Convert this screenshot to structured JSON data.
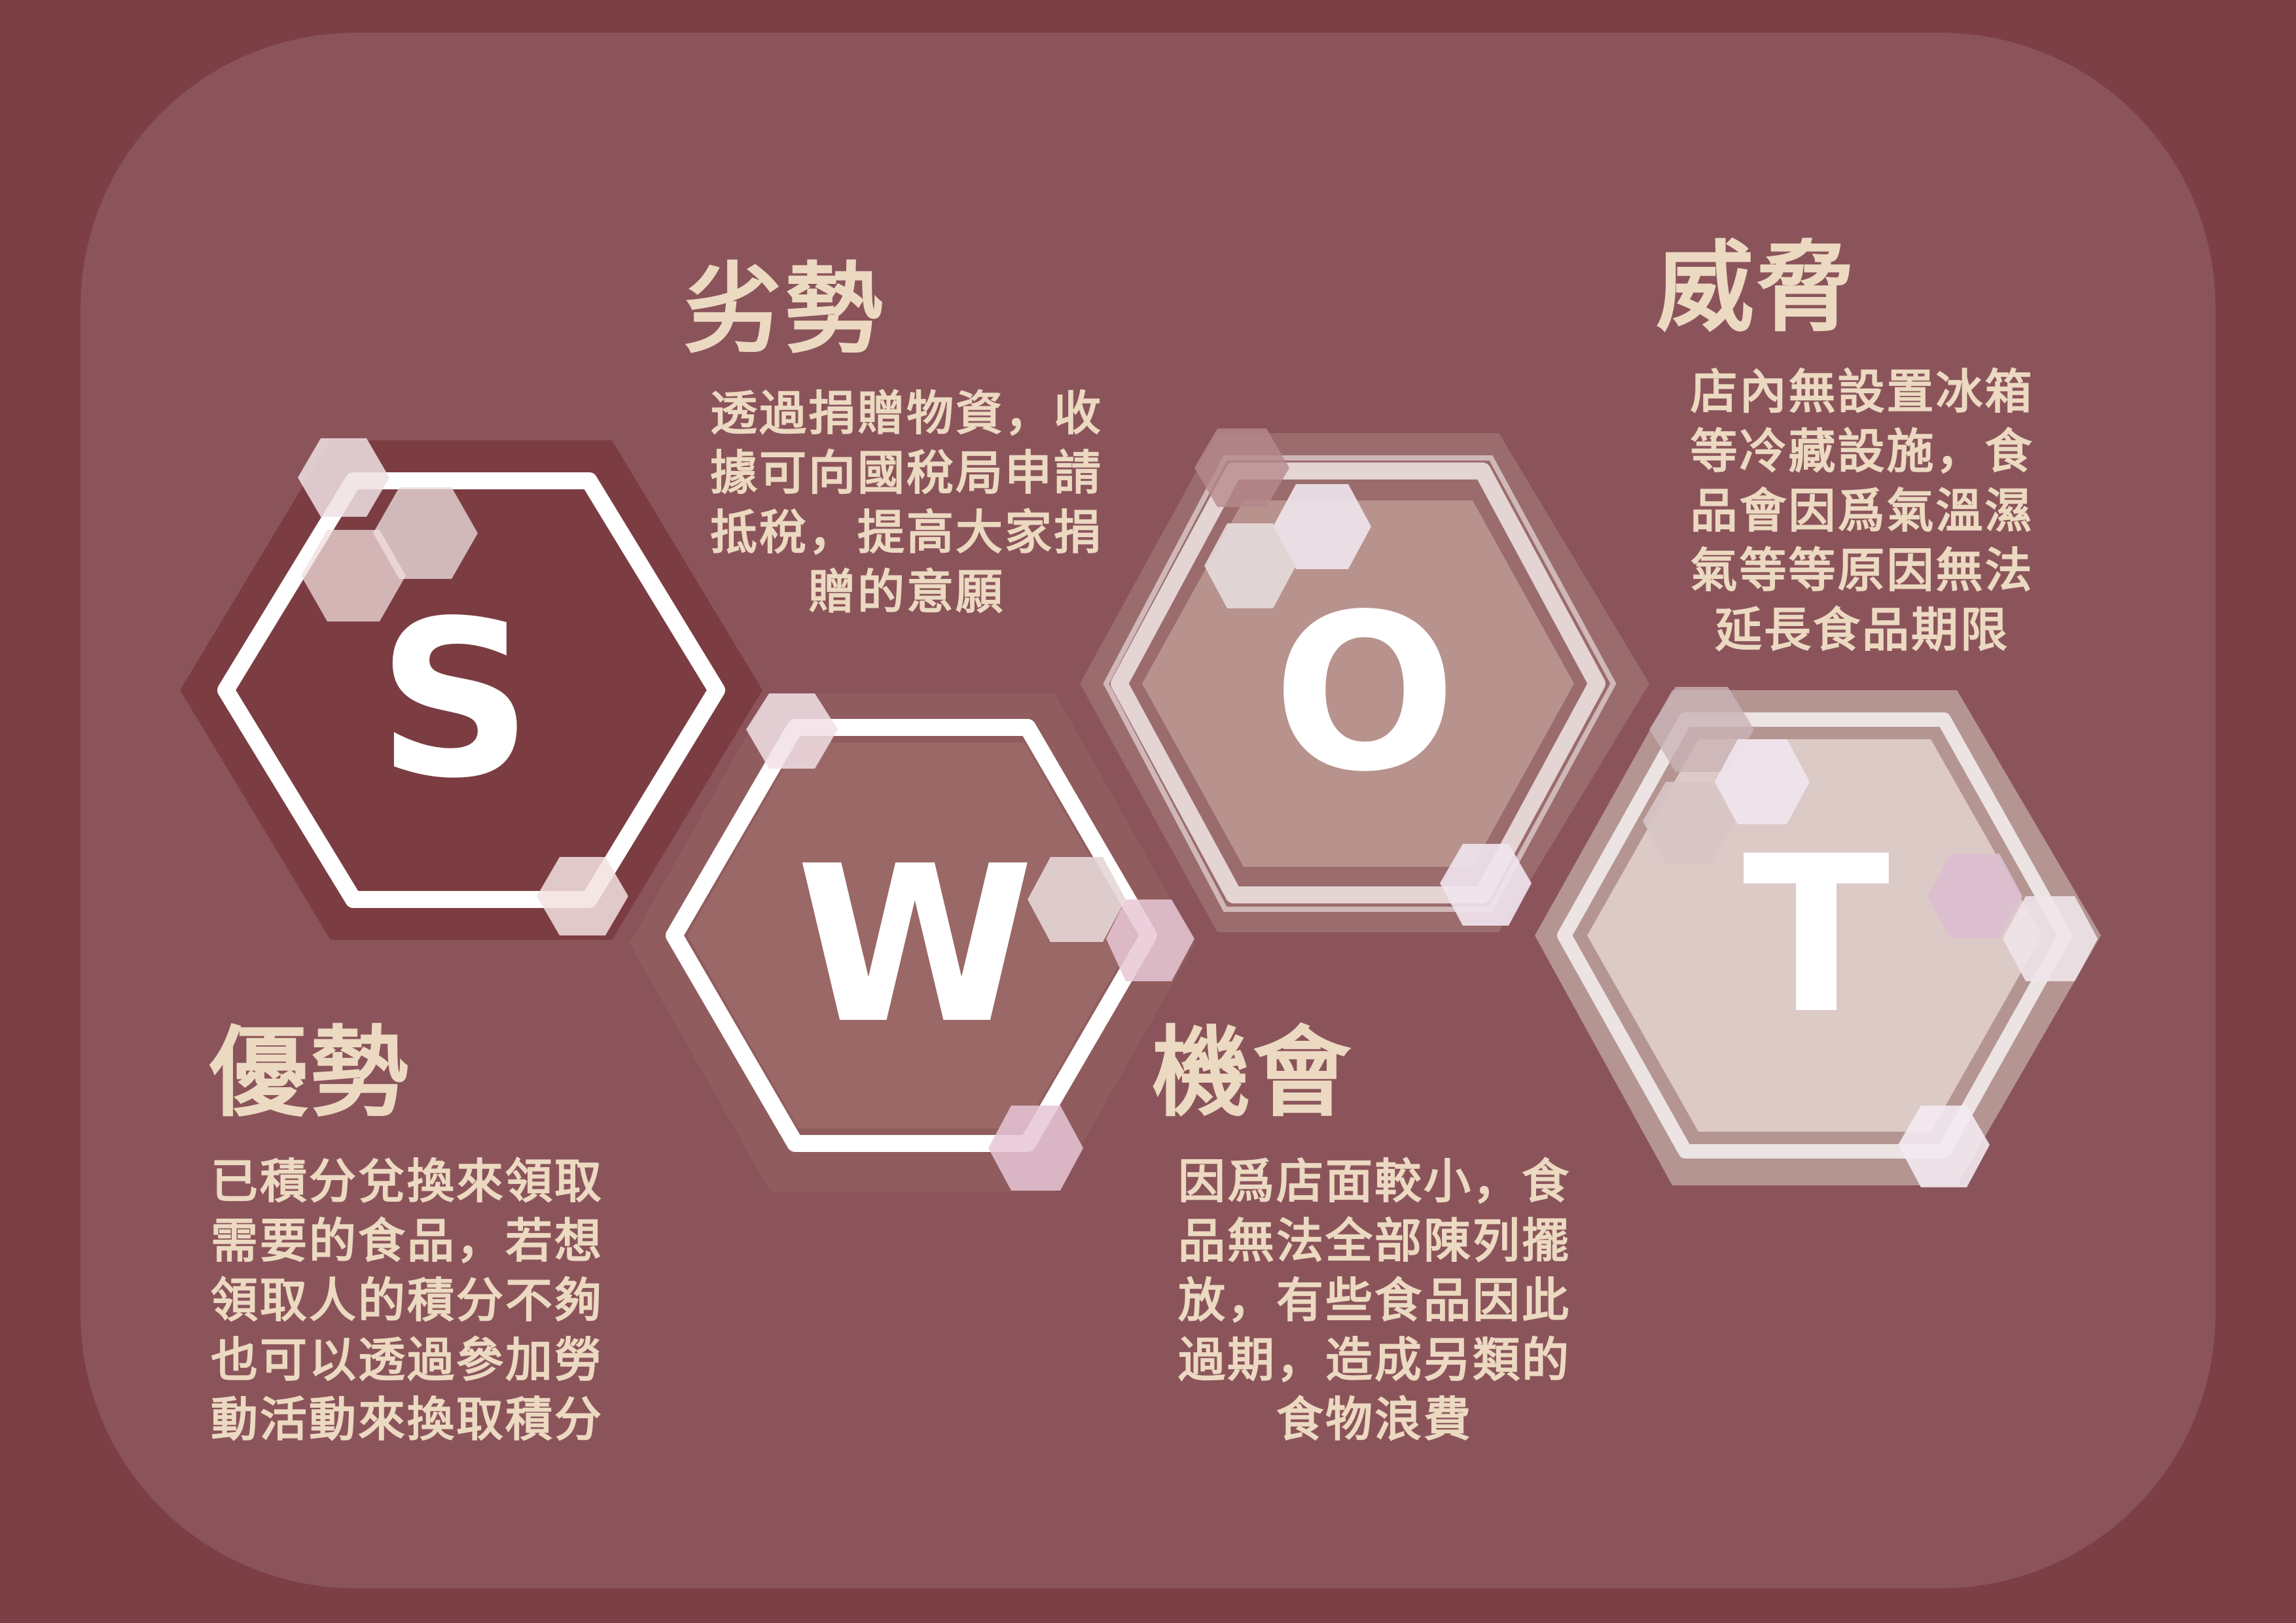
{
  "colors": {
    "background": "#7c3f45",
    "panel": "#8b545b",
    "text": "#ecd9c1",
    "hex_s": "#7b3d42",
    "hex_w": "#9a6866",
    "hex_o": "#b8928d",
    "hex_t": "#dccac6"
  },
  "hexagons": [
    {
      "key": "s",
      "letter": "S"
    },
    {
      "key": "w",
      "letter": "W"
    },
    {
      "key": "o",
      "letter": "O"
    },
    {
      "key": "t",
      "letter": "T"
    }
  ],
  "strengths": {
    "heading": "優勢",
    "lines": [
      "已積分兌換來領取",
      "需要的食品，若想",
      "領取人的積分不夠",
      "也可以透過參加勞",
      "動活動來換取積分"
    ]
  },
  "weaknesses": {
    "heading": "劣勢",
    "lines": [
      "透過捐贈物資，收",
      "據可向國稅局申請",
      "抵稅，提高大家捐",
      "贈的意願"
    ]
  },
  "opportunities": {
    "heading": "機會",
    "lines": [
      "因爲店面較小，食",
      "品無法全部陳列擺",
      "放，有些食品因此",
      "過期，造成另類的",
      "食物浪費"
    ]
  },
  "threats": {
    "heading": "威脅",
    "lines": [
      "店內無設置冰箱",
      "等冷藏設施，食",
      "品會因爲氣溫濕",
      "氣等等原因無法",
      "延長食品期限"
    ]
  }
}
